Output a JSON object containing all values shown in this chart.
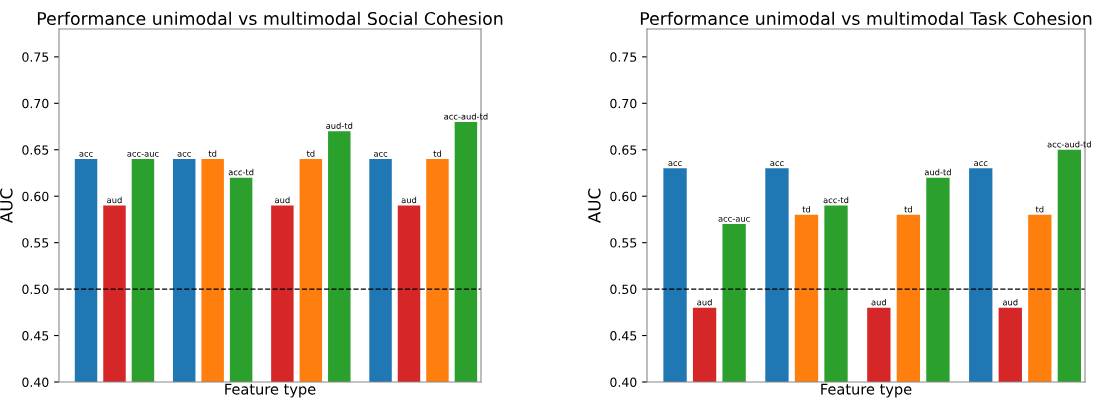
{
  "chart_data": [
    {
      "type": "bar",
      "title": "Performance unimodal vs multimodal Social Cohesion",
      "xlabel": "Feature type",
      "ylabel": "AUC",
      "categories": [
        null,
        null,
        null,
        null
      ],
      "ylim": [
        0.4,
        0.78
      ],
      "yticks": [
        {
          "value": 0.4,
          "label": "0.40"
        },
        {
          "value": 0.45,
          "label": "0.45"
        },
        {
          "value": 0.5,
          "label": "0.50"
        },
        {
          "value": 0.55,
          "label": "0.55"
        },
        {
          "value": 0.6,
          "label": "0.60"
        },
        {
          "value": 0.65,
          "label": "0.65"
        },
        {
          "value": 0.7,
          "label": "0.70"
        },
        {
          "value": 0.75,
          "label": "0.75"
        }
      ],
      "tick_labels": "y",
      "grid": false,
      "legend": false,
      "series": [
        {
          "color": "#1f77b4",
          "values": [
            0.64,
            0.64,
            null,
            0.64
          ],
          "value_labels": [
            "acc",
            "acc",
            null,
            "acc"
          ]
        },
        {
          "color": "#d62728",
          "values": [
            0.59,
            null,
            0.59,
            0.59
          ],
          "value_labels": [
            "aud",
            null,
            "aud",
            "aud"
          ]
        },
        {
          "color": "#ff7f0e",
          "values": [
            null,
            0.64,
            0.64,
            0.64
          ],
          "value_labels": [
            null,
            "td",
            "td",
            "td"
          ]
        },
        {
          "color": "#2ca02c",
          "values": [
            0.64,
            0.62,
            0.67,
            0.68
          ],
          "value_labels": [
            "acc-auc",
            "acc-td",
            "aud-td",
            "acc-aud-td"
          ]
        }
      ],
      "ref_lines": [
        {
          "axis": "y",
          "value": 0.5,
          "color": "#000000",
          "line_style": "dashed"
        }
      ]
    },
    {
      "type": "bar",
      "title": "Performance unimodal vs multimodal Task Cohesion",
      "xlabel": "Feature type",
      "ylabel": "AUC",
      "categories": [
        null,
        null,
        null,
        null
      ],
      "ylim": [
        0.4,
        0.78
      ],
      "yticks": [
        {
          "value": 0.4,
          "label": "0.40"
        },
        {
          "value": 0.45,
          "label": "0.45"
        },
        {
          "value": 0.5,
          "label": "0.50"
        },
        {
          "value": 0.55,
          "label": "0.55"
        },
        {
          "value": 0.6,
          "label": "0.60"
        },
        {
          "value": 0.65,
          "label": "0.65"
        },
        {
          "value": 0.7,
          "label": "0.70"
        },
        {
          "value": 0.75,
          "label": "0.75"
        }
      ],
      "tick_labels": "y",
      "grid": false,
      "legend": false,
      "series": [
        {
          "color": "#1f77b4",
          "values": [
            0.63,
            0.63,
            null,
            0.63
          ],
          "value_labels": [
            "acc",
            "acc",
            null,
            "acc"
          ]
        },
        {
          "color": "#d62728",
          "values": [
            0.48,
            null,
            0.48,
            0.48
          ],
          "value_labels": [
            "aud",
            null,
            "aud",
            "aud"
          ]
        },
        {
          "color": "#ff7f0e",
          "values": [
            null,
            0.58,
            0.58,
            0.58
          ],
          "value_labels": [
            null,
            "td",
            "td",
            "td"
          ]
        },
        {
          "color": "#2ca02c",
          "values": [
            0.57,
            0.59,
            0.62,
            0.65
          ],
          "value_labels": [
            "acc-auc",
            "acc-td",
            "aud-td",
            "acc-aud-td"
          ]
        }
      ],
      "ref_lines": [
        {
          "axis": "y",
          "value": 0.5,
          "color": "#000000",
          "line_style": "dashed"
        }
      ]
    }
  ]
}
